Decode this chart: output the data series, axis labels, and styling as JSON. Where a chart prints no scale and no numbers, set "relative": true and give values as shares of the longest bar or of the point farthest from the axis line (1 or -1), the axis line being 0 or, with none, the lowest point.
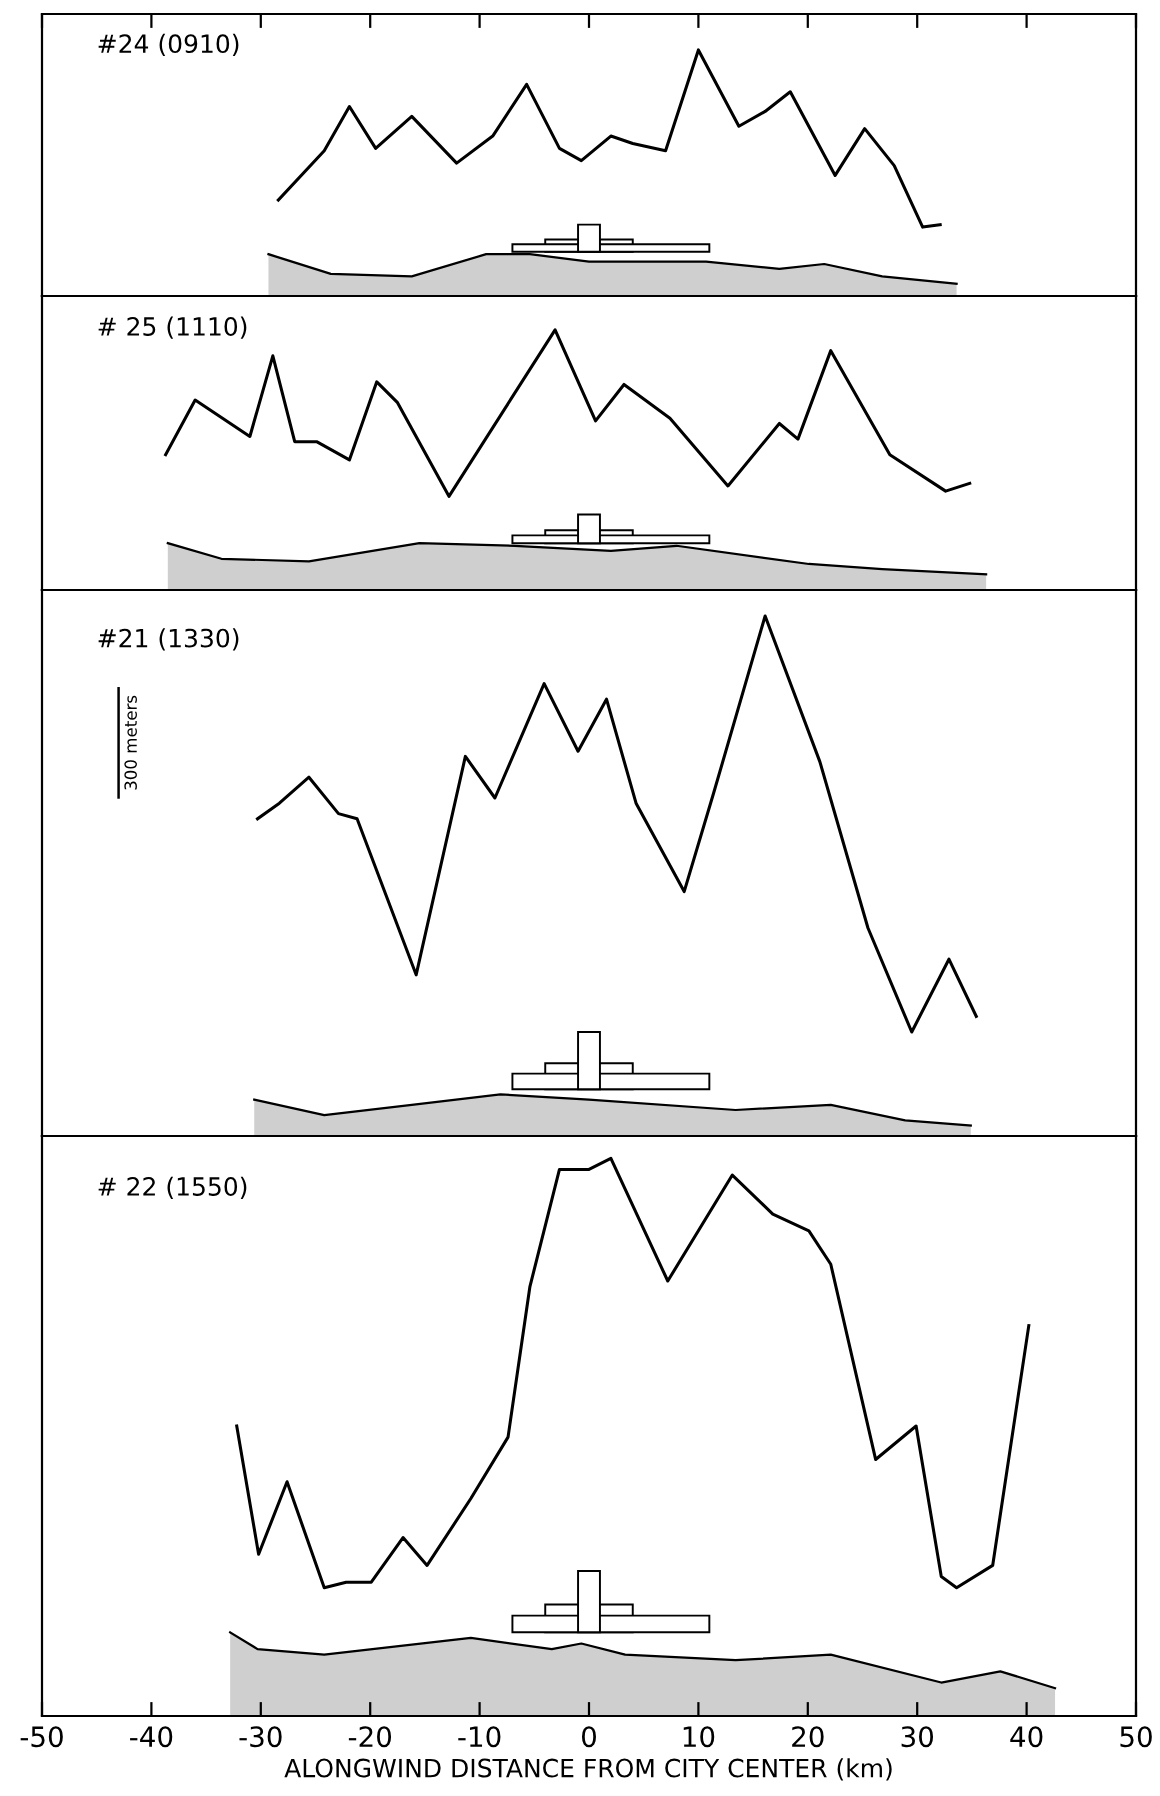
{
  "chart_data": [
    {
      "type": "line",
      "title": "#24 (0910)",
      "relative": true,
      "xlim": [
        -50,
        50
      ],
      "xticks": [
        -50,
        -40,
        -30,
        -20,
        -10,
        0,
        10,
        20,
        30,
        40,
        50
      ],
      "tick_labels": false,
      "series": [
        {
          "color": "#000000",
          "x": [
            -28.4,
            -24.2,
            -21.9,
            -19.5,
            -16.2,
            -12.1,
            -8.8,
            -5.7,
            -2.7,
            -0.7,
            2.0,
            4.0,
            7.0,
            10.0,
            13.7,
            16.1,
            18.4,
            22.5,
            25.2,
            27.9,
            30.5,
            32.1
          ],
          "values": [
            0.39,
            0.59,
            0.77,
            0.6,
            0.73,
            0.54,
            0.65,
            0.86,
            0.6,
            0.55,
            0.65,
            0.62,
            0.59,
            1.0,
            0.69,
            0.75,
            0.83,
            0.49,
            0.68,
            0.53,
            0.28,
            0.29
          ]
        },
        {
          "type": "area",
          "color": "#cfcfcf",
          "x": [
            -29.3,
            -23.6,
            -16.2,
            -9.4,
            -5.4,
            0,
            10.7,
            17.4,
            21.5,
            26.8,
            33.6
          ],
          "values": [
            0.17,
            0.09,
            0.08,
            0.17,
            0.17,
            0.14,
            0.14,
            0.11,
            0.13,
            0.08,
            0.05
          ]
        }
      ]
    },
    {
      "type": "line",
      "title": "# 25 (1110)",
      "relative": true,
      "xlim": [
        -50,
        50
      ],
      "xticks": [
        -50,
        -40,
        -30,
        -20,
        -10,
        0,
        10,
        20,
        30,
        40,
        50
      ],
      "tick_labels": false,
      "series": [
        {
          "color": "#000000",
          "x": [
            -38.7,
            -36.0,
            -31.0,
            -28.9,
            -26.9,
            -24.9,
            -21.9,
            -19.4,
            -17.5,
            -12.8,
            -3.1,
            0.6,
            3.2,
            7.4,
            12.7,
            17.4,
            19.1,
            22.1,
            27.5,
            32.6,
            34.8
          ],
          "values": [
            0.52,
            0.73,
            0.59,
            0.9,
            0.57,
            0.57,
            0.5,
            0.8,
            0.72,
            0.36,
            1.0,
            0.65,
            0.79,
            0.66,
            0.4,
            0.64,
            0.58,
            0.92,
            0.52,
            0.38,
            0.41
          ]
        },
        {
          "type": "area",
          "color": "#cfcfcf",
          "x": [
            -38.5,
            -33.6,
            -25.6,
            -15.5,
            -6.8,
            2.0,
            8.0,
            20.1,
            26.8,
            36.3
          ],
          "values": [
            0.18,
            0.12,
            0.11,
            0.18,
            0.17,
            0.15,
            0.17,
            0.1,
            0.08,
            0.06
          ]
        }
      ]
    },
    {
      "type": "line",
      "title": "#21 (1330)",
      "relative": true,
      "xlim": [
        -50,
        50
      ],
      "xticks": [
        -50,
        -40,
        -30,
        -20,
        -10,
        0,
        10,
        20,
        30,
        40,
        50
      ],
      "tick_labels": false,
      "annotations": [
        "300 meters"
      ],
      "series": [
        {
          "color": "#000000",
          "x": [
            -30.3,
            -28.3,
            -25.6,
            -22.9,
            -21.2,
            -15.8,
            -11.3,
            -8.6,
            -4.1,
            -1.0,
            1.6,
            4.3,
            8.7,
            11.4,
            16.1,
            21.1,
            25.5,
            29.5,
            32.9,
            35.4
          ],
          "values": [
            0.61,
            0.64,
            0.69,
            0.62,
            0.61,
            0.31,
            0.73,
            0.65,
            0.87,
            0.74,
            0.84,
            0.64,
            0.47,
            0.66,
            1.0,
            0.72,
            0.4,
            0.2,
            0.34,
            0.23
          ]
        },
        {
          "type": "area",
          "color": "#cfcfcf",
          "x": [
            -30.6,
            -24.2,
            -16.2,
            -8.1,
            0,
            13.4,
            22.1,
            28.9,
            34.9
          ],
          "values": [
            0.07,
            0.04,
            0.06,
            0.08,
            0.07,
            0.05,
            0.06,
            0.03,
            0.02
          ]
        }
      ]
    },
    {
      "type": "line",
      "title": "# 22 (1550)",
      "relative": true,
      "xlim": [
        -50,
        50
      ],
      "xticks": [
        -50,
        -40,
        -30,
        -20,
        -10,
        0,
        10,
        20,
        30,
        40,
        50
      ],
      "tick_labels": "x",
      "xlabel": "ALONGWIND DISTANCE FROM CITY CENTER (km)",
      "series": [
        {
          "color": "#000000",
          "x": [
            -32.2,
            -30.2,
            -27.6,
            -24.2,
            -22.2,
            -19.9,
            -17.0,
            -14.8,
            -10.8,
            -7.4,
            -5.4,
            -2.7,
            0,
            2.0,
            7.2,
            13.1,
            16.8,
            20.1,
            22.1,
            26.2,
            29.9,
            32.2,
            33.6,
            36.9,
            40.2
          ],
          "values": [
            0.52,
            0.29,
            0.42,
            0.23,
            0.24,
            0.24,
            0.32,
            0.27,
            0.39,
            0.5,
            0.77,
            0.98,
            0.98,
            1.0,
            0.78,
            0.97,
            0.9,
            0.87,
            0.81,
            0.46,
            0.52,
            0.25,
            0.23,
            0.27,
            0.7
          ]
        },
        {
          "type": "area",
          "color": "#cfcfcf",
          "x": [
            -32.8,
            -30.3,
            -24.2,
            -10.8,
            -3.4,
            -0.7,
            3.3,
            13.4,
            22.1,
            32.2,
            37.6,
            42.6
          ],
          "values": [
            0.15,
            0.12,
            0.11,
            0.14,
            0.12,
            0.13,
            0.11,
            0.1,
            0.11,
            0.06,
            0.08,
            0.05
          ]
        }
      ]
    }
  ]
}
